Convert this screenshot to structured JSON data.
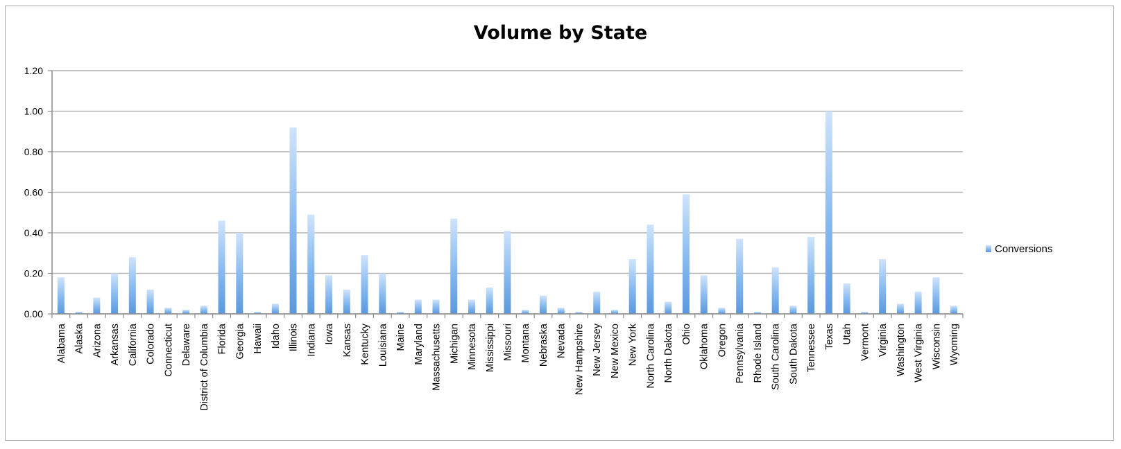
{
  "chart_data": {
    "type": "bar",
    "title": "Volume by State",
    "xlabel": "",
    "ylabel": "",
    "ylim": [
      0,
      1.2
    ],
    "yticks": [
      "0.00",
      "0.20",
      "0.40",
      "0.60",
      "0.80",
      "1.00",
      "1.20"
    ],
    "grid": true,
    "legend_position": "right",
    "bar_color": "#6fa8e6",
    "categories": [
      "Alabama",
      "Alaska",
      "Arizona",
      "Arkansas",
      "California",
      "Colorado",
      "Connecticut",
      "Delaware",
      "District of Columbia",
      "Florida",
      "Georgia",
      "Hawaii",
      "Idaho",
      "Illinois",
      "Indiana",
      "Iowa",
      "Kansas",
      "Kentucky",
      "Louisiana",
      "Maine",
      "Maryland",
      "Massachusetts",
      "Michigan",
      "Minnesota",
      "Mississippi",
      "Missouri",
      "Montana",
      "Nebraska",
      "Nevada",
      "New Hampshire",
      "New Jersey",
      "New Mexico",
      "New York",
      "North Carolina",
      "North Dakota",
      "Ohio",
      "Oklahoma",
      "Oregon",
      "Pennsylvania",
      "Rhode Island",
      "South Carolina",
      "South Dakota",
      "Tennessee",
      "Texas",
      "Utah",
      "Vermont",
      "Virginia",
      "Washington",
      "West Virginia",
      "Wisconsin",
      "Wyoming"
    ],
    "series": [
      {
        "name": "Conversions",
        "values": [
          0.18,
          0.01,
          0.08,
          0.2,
          0.28,
          0.12,
          0.03,
          0.02,
          0.04,
          0.46,
          0.4,
          0.01,
          0.05,
          0.92,
          0.49,
          0.19,
          0.12,
          0.29,
          0.2,
          0.01,
          0.07,
          0.07,
          0.47,
          0.07,
          0.13,
          0.41,
          0.02,
          0.09,
          0.03,
          0.01,
          0.11,
          0.02,
          0.27,
          0.44,
          0.06,
          0.59,
          0.19,
          0.03,
          0.37,
          0.01,
          0.23,
          0.04,
          0.38,
          1.0,
          0.15,
          0.01,
          0.27,
          0.05,
          0.11,
          0.18,
          0.04
        ]
      }
    ]
  }
}
